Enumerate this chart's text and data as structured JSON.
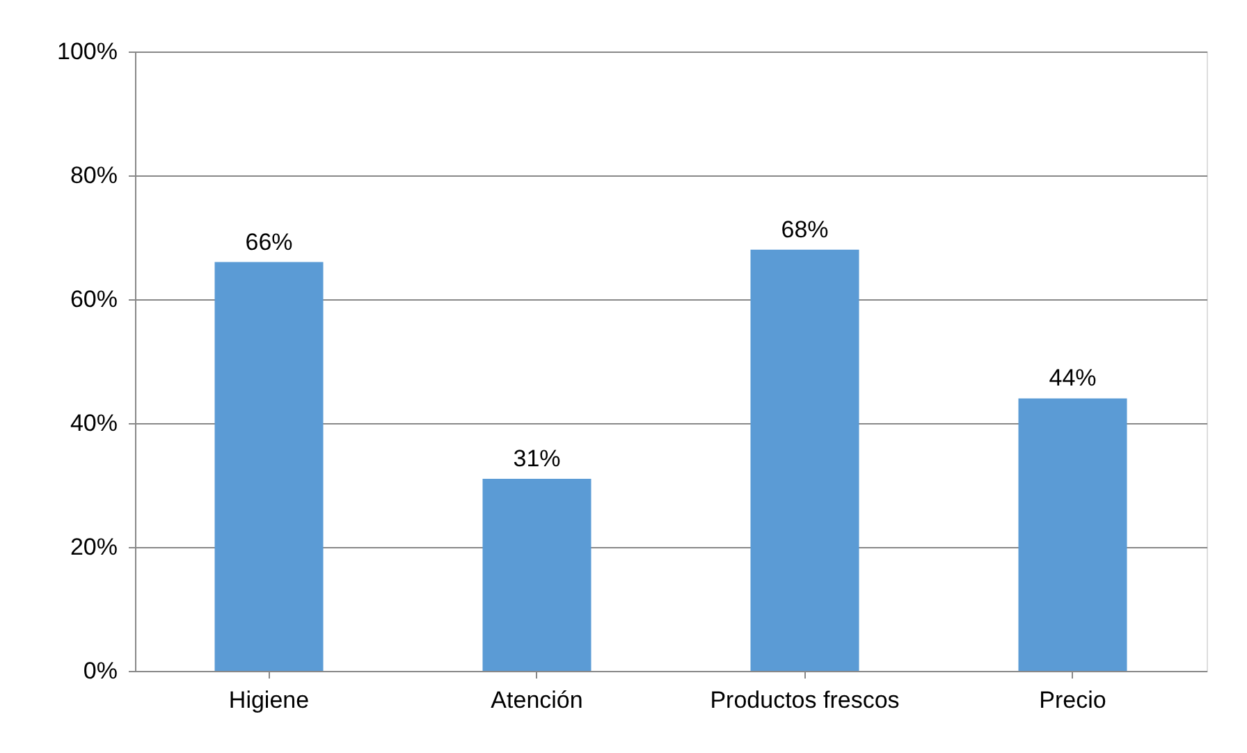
{
  "chart_data": {
    "type": "bar",
    "categories": [
      "Higiene",
      "Atención",
      "Productos frescos",
      "Precio"
    ],
    "values": [
      66,
      31,
      68,
      44
    ],
    "color": "#5b9bd5",
    "value_labels": [
      "66%",
      "31%",
      "68%",
      "44%"
    ],
    "ylim": [
      0,
      100
    ],
    "yticks": [
      {
        "value": 0,
        "label": "0%"
      },
      {
        "value": 20,
        "label": "20%"
      },
      {
        "value": 40,
        "label": "40%"
      },
      {
        "value": 60,
        "label": "60%"
      },
      {
        "value": 80,
        "label": "80%"
      },
      {
        "value": 100,
        "label": "100%"
      }
    ],
    "grid": "y"
  }
}
